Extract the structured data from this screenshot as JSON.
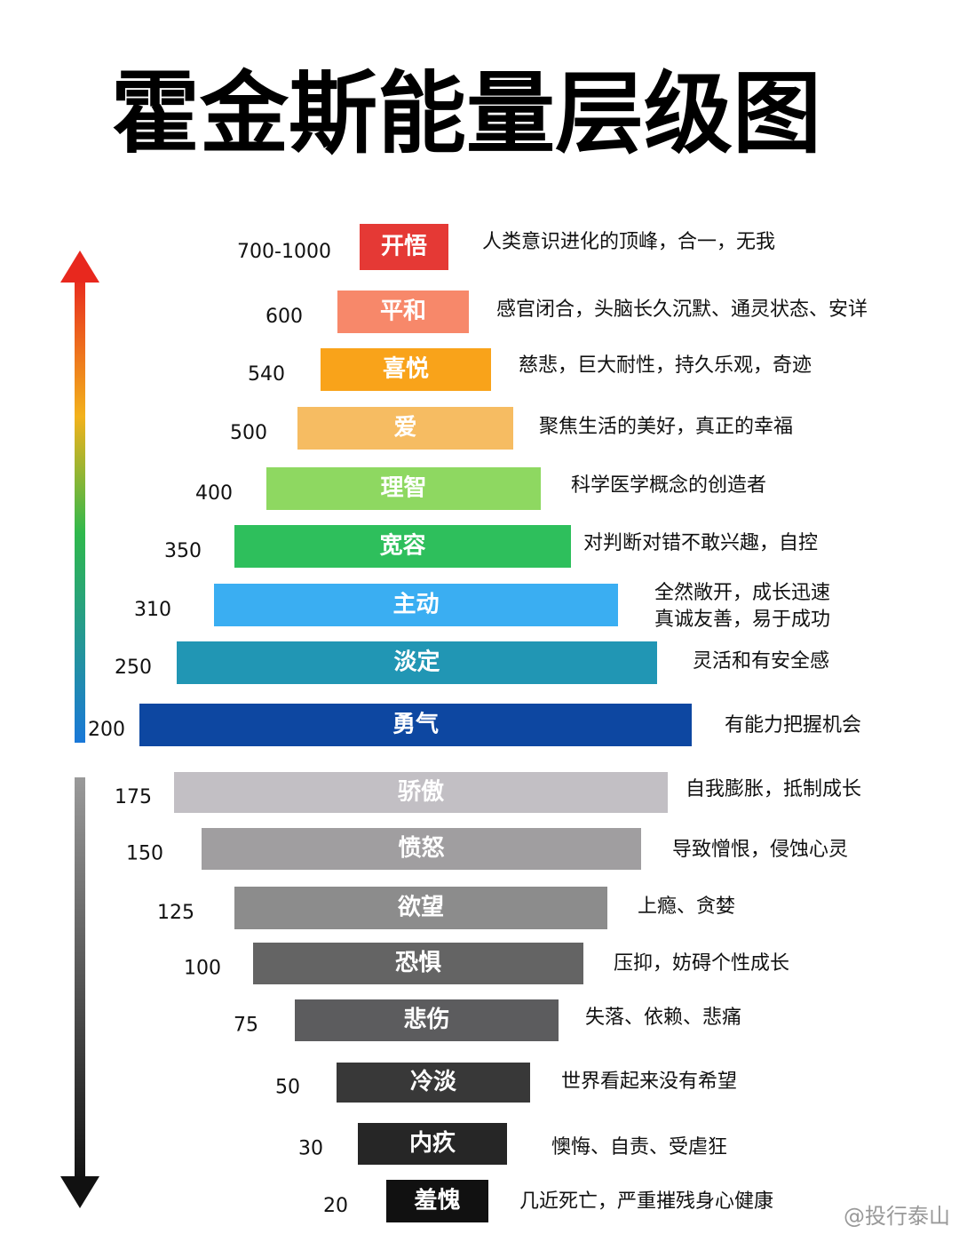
{
  "header": {
    "title": "霍金斯能量层级图"
  },
  "levels": [
    {
      "level": "700-1000",
      "name": "开悟",
      "color": "#e53935",
      "description": [
        "人类意识进化的顶峰，合一，无我"
      ]
    },
    {
      "level": "600",
      "name": "平和",
      "color": "#f7886a",
      "description": [
        "感官闭合，头脑长久沉默、通灵状态、安详"
      ]
    },
    {
      "level": "540",
      "name": "喜悦",
      "color": "#f9a31a",
      "description": [
        "慈悲，巨大耐性，持久乐观，奇迹"
      ]
    },
    {
      "level": "500",
      "name": "爱",
      "color": "#f6bc62",
      "description": [
        "聚焦生活的美好，真正的幸福"
      ]
    },
    {
      "level": "400",
      "name": "理智",
      "color": "#8ed861",
      "description": [
        "科学医学概念的创造者"
      ]
    },
    {
      "level": "350",
      "name": "宽容",
      "color": "#2ebf5c",
      "description": [
        "对判断对错不敢兴趣，自控"
      ]
    },
    {
      "level": "310",
      "name": "主动",
      "color": "#3aaef2",
      "description": [
        "全然敞开，成长迅速",
        "真诚友善，易于成功"
      ]
    },
    {
      "level": "250",
      "name": "淡定",
      "color": "#2196b4",
      "description": [
        "灵活和有安全感"
      ]
    },
    {
      "level": "200",
      "name": "勇气",
      "color": "#0d47a1",
      "description": [
        "有能力把握机会"
      ]
    },
    {
      "level": "175",
      "name": "骄傲",
      "color": "#c2bfc4",
      "description": [
        "自我膨胀，抵制成长"
      ]
    },
    {
      "level": "150",
      "name": "愤怒",
      "color": "#a09ea0",
      "description": [
        "导致憎恨，侵蚀心灵"
      ]
    },
    {
      "level": "125",
      "name": "欲望",
      "color": "#8c8c8c",
      "description": [
        "上瘾、贪婪"
      ]
    },
    {
      "level": "100",
      "name": "恐惧",
      "color": "#646464",
      "description": [
        "压抑，妨碍个性成长"
      ]
    },
    {
      "level": "75",
      "name": "悲伤",
      "color": "#5c5c5e",
      "description": [
        "失落、依赖、悲痛"
      ]
    },
    {
      "level": "50",
      "name": "冷淡",
      "color": "#383838",
      "description": [
        "世界看起来没有希望"
      ]
    },
    {
      "level": "30",
      "name": "内疚",
      "color": "#262626",
      "description": [
        "懊悔、自责、受虐狂"
      ]
    },
    {
      "level": "20",
      "name": "羞愧",
      "color": "#111111",
      "description": [
        "几近死亡，严重摧残身心健康"
      ]
    }
  ],
  "watermark": "@投行泰山"
}
